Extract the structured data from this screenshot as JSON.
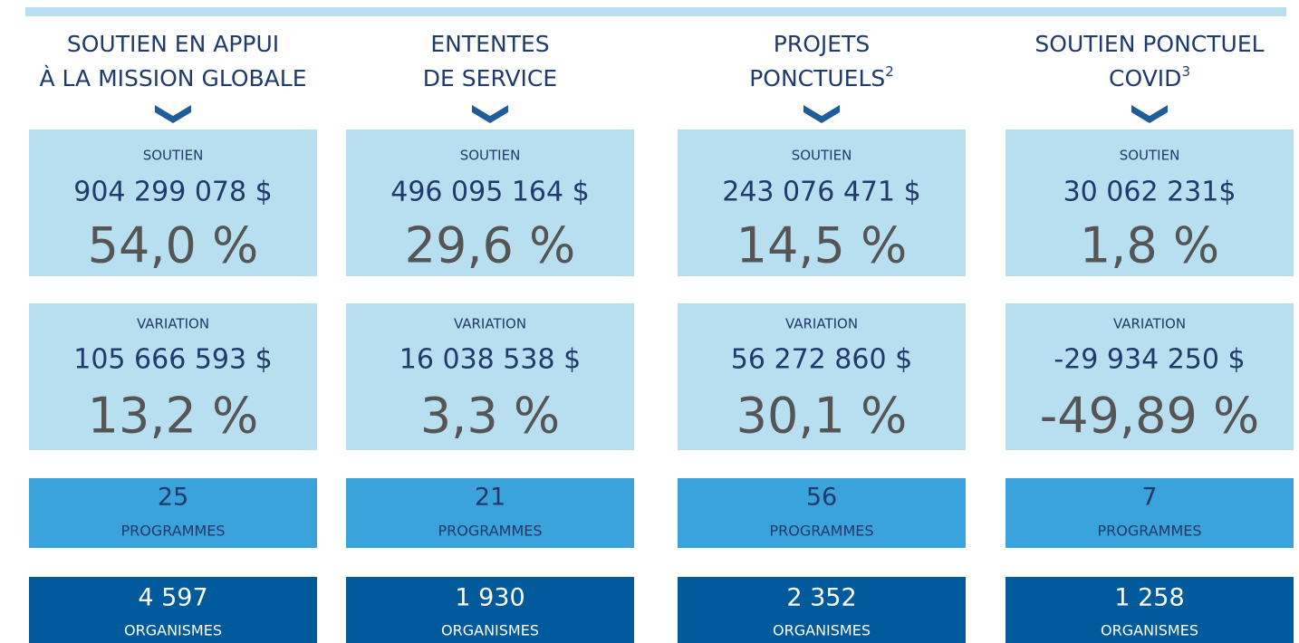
{
  "labels": {
    "support": "SOUTIEN",
    "variation": "VARIATION",
    "programs": "PROGRAMMES",
    "organizations": "ORGANISMES"
  },
  "columns": [
    {
      "title": [
        "SOUTIEN EN APPUI",
        "À LA MISSION GLOBALE"
      ],
      "support_amount": "904 299 078 $",
      "support_percent": "54,0 %",
      "variation_amount": "105 666 593 $",
      "variation_percent": "13,2 %",
      "programs": "25",
      "organizations": "4 597"
    },
    {
      "title": [
        "ENTENTES",
        "DE SERVICE"
      ],
      "support_amount": "496 095 164 $",
      "support_percent": "29,6 %",
      "variation_amount": "16 038 538 $",
      "variation_percent": "3,3 %",
      "programs": "21",
      "organizations": "1 930"
    },
    {
      "title": [
        "PROJETS",
        "PONCTUELS"
      ],
      "title_note": "2",
      "support_amount": "243 076 471 $",
      "support_percent": "14,5 %",
      "variation_amount": "56 272 860 $",
      "variation_percent": "30,1 %",
      "programs": "56",
      "organizations": "2 352"
    },
    {
      "title": [
        "SOUTIEN PONCTUEL",
        "COVID"
      ],
      "title_note": "3",
      "support_amount": "30 062 231$",
      "support_percent": "1,8 %",
      "variation_amount": "-29 934 250 $",
      "variation_percent": "-49,89 %",
      "programs": "7",
      "organizations": "1 258"
    }
  ]
}
